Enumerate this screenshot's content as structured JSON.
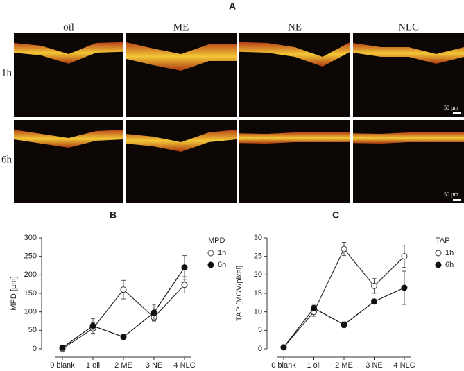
{
  "panel_a": {
    "label": "A",
    "columns": [
      "oil",
      "ME",
      "NE",
      "NLC"
    ],
    "rows": [
      "1h",
      "6h"
    ],
    "scale_bar": "50 µm"
  },
  "chart_data": [
    {
      "type": "line",
      "panel": "B",
      "y_label": "MPD [µm]",
      "legend_title": "MPD",
      "categories": [
        "0 blank",
        "1 oil",
        "2 ME",
        "3 NE",
        "4 NLC"
      ],
      "ylim": [
        0,
        300
      ],
      "yticks": [
        0,
        50,
        100,
        150,
        200,
        250,
        300
      ],
      "series": [
        {
          "name": "1h",
          "color": "#333333",
          "marker": "open",
          "values": [
            0,
            55,
            160,
            85,
            173
          ],
          "errors": [
            0,
            15,
            25,
            10,
            22
          ]
        },
        {
          "name": "6h",
          "color": "#111111",
          "marker": "filled",
          "values": [
            3,
            62,
            32,
            98,
            220
          ],
          "errors": [
            0,
            20,
            0,
            22,
            32
          ]
        }
      ]
    },
    {
      "type": "line",
      "panel": "C",
      "y_label": "TAP [MGV/pixel]",
      "legend_title": "TAP",
      "categories": [
        "0 blank",
        "1 oil",
        "2 ME",
        "3 NE",
        "4 NLC"
      ],
      "ylim": [
        0,
        30
      ],
      "yticks": [
        0,
        5,
        10,
        15,
        20,
        25,
        30
      ],
      "series": [
        {
          "name": "1h",
          "color": "#333333",
          "marker": "open",
          "values": [
            0.4,
            10,
            27,
            17,
            25
          ],
          "errors": [
            0,
            1.2,
            1.8,
            2,
            3
          ]
        },
        {
          "name": "6h",
          "color": "#111111",
          "marker": "filled",
          "values": [
            0.4,
            11,
            6.5,
            12.8,
            16.5
          ],
          "errors": [
            0,
            0.8,
            0.8,
            0,
            4.5
          ]
        }
      ]
    }
  ]
}
